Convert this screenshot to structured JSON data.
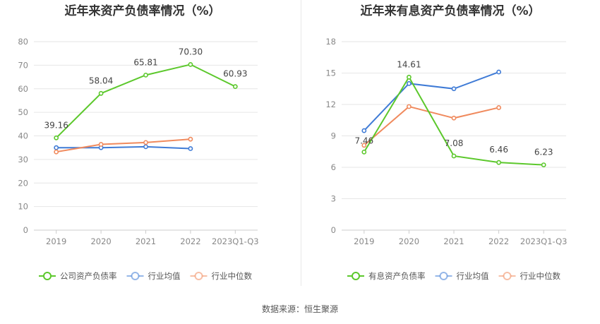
{
  "source_text": "数据来源：恒生聚源",
  "chart_data": [
    {
      "type": "line",
      "title": "近年来资产负债率情况（%）",
      "categories": [
        "2019",
        "2020",
        "2021",
        "2022",
        "2023Q1-Q3"
      ],
      "ylim": [
        0,
        80
      ],
      "yticks": [
        0,
        10,
        20,
        30,
        40,
        50,
        60,
        70,
        80
      ],
      "grid": true,
      "legend_position": "bottom",
      "series": [
        {
          "name": "公司资产负债率",
          "color": "#5cc82c",
          "values": [
            39.16,
            58.04,
            65.81,
            70.3,
            60.93
          ],
          "labels": [
            "39.16",
            "58.04",
            "65.81",
            "70.30",
            "60.93"
          ]
        },
        {
          "name": "行业均值",
          "color": "#3f7bd6",
          "values": [
            35.0,
            35.0,
            35.4,
            34.6,
            null
          ]
        },
        {
          "name": "行业中位数",
          "color": "#f08a5d",
          "values": [
            33.2,
            36.4,
            37.2,
            38.6,
            null
          ]
        }
      ]
    },
    {
      "type": "line",
      "title": "近年来有息资产负债率情况（%）",
      "categories": [
        "2019",
        "2020",
        "2021",
        "2022",
        "2023Q1-Q3"
      ],
      "ylim": [
        0,
        18
      ],
      "yticks": [
        0,
        3,
        6,
        9,
        12,
        15,
        18
      ],
      "grid": true,
      "legend_position": "bottom",
      "series": [
        {
          "name": "有息资产负债率",
          "color": "#5cc82c",
          "values": [
            7.46,
            14.61,
            7.08,
            6.46,
            6.23
          ],
          "labels": [
            "7.46",
            "14.61",
            "7.08",
            "6.46",
            "6.23"
          ]
        },
        {
          "name": "行业均值",
          "color": "#3f7bd6",
          "values": [
            9.5,
            14.0,
            13.5,
            15.1,
            null
          ]
        },
        {
          "name": "行业中位数",
          "color": "#f08a5d",
          "values": [
            8.1,
            11.8,
            10.7,
            11.7,
            null
          ]
        }
      ]
    }
  ]
}
